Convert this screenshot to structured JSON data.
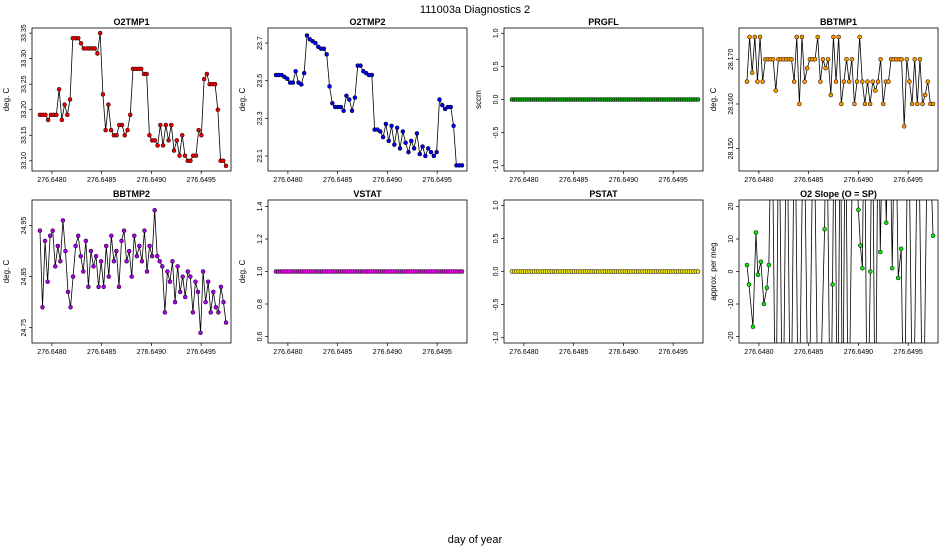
{
  "figure": {
    "title": "111003a   Diagnostics 2",
    "xlabel": "day of year"
  },
  "chart_data": [
    {
      "type": "line",
      "title": "O2TMP1",
      "ylabel": "deg. C",
      "xlim": [
        276.6478,
        276.6498
      ],
      "ylim": [
        33.08,
        33.36
      ],
      "xticks": [
        "276.6480",
        "276.6485",
        "276.6490",
        "276.6495"
      ],
      "xtick_values": [
        276.648,
        276.6485,
        276.649,
        276.6495
      ],
      "yticks": [
        "33.10",
        "33.15",
        "33.20",
        "33.25",
        "33.30",
        "33.35"
      ],
      "ytick_values": [
        33.1,
        33.15,
        33.2,
        33.25,
        33.3,
        33.35
      ],
      "marker_color": "#ee0000",
      "values": [
        33.19,
        33.19,
        33.19,
        33.18,
        33.19,
        33.19,
        33.19,
        33.24,
        33.18,
        33.21,
        33.19,
        33.22,
        33.34,
        33.34,
        33.34,
        33.33,
        33.32,
        33.32,
        33.32,
        33.32,
        33.32,
        33.31,
        33.35,
        33.23,
        33.16,
        33.21,
        33.16,
        33.15,
        33.15,
        33.17,
        33.17,
        33.15,
        33.16,
        33.19,
        33.28,
        33.28,
        33.28,
        33.28,
        33.27,
        33.27,
        33.15,
        33.14,
        33.14,
        33.13,
        33.17,
        33.13,
        33.17,
        33.14,
        33.17,
        33.12,
        33.14,
        33.11,
        33.15,
        33.11,
        33.1,
        33.1,
        33.11,
        33.11,
        33.16,
        33.15,
        33.26,
        33.27,
        33.25,
        33.25,
        33.25,
        33.2,
        33.1,
        33.1,
        33.09
      ]
    },
    {
      "type": "line",
      "title": "O2TMP2",
      "ylabel": "deg. C",
      "xlim": [
        276.6478,
        276.6498
      ],
      "ylim": [
        23.02,
        23.78
      ],
      "xticks": [
        "276.6480",
        "276.6485",
        "276.6490",
        "276.6495"
      ],
      "xtick_values": [
        276.648,
        276.6485,
        276.649,
        276.6495
      ],
      "yticks": [
        "23.1",
        "23.3",
        "23.5",
        "23.7"
      ],
      "ytick_values": [
        23.1,
        23.3,
        23.5,
        23.7
      ],
      "marker_color": "#0000ee",
      "values": [
        23.53,
        23.53,
        23.53,
        23.52,
        23.51,
        23.49,
        23.49,
        23.55,
        23.49,
        23.48,
        23.54,
        23.74,
        23.72,
        23.71,
        23.7,
        23.68,
        23.67,
        23.67,
        23.64,
        23.47,
        23.38,
        23.36,
        23.36,
        23.36,
        23.34,
        23.42,
        23.4,
        23.34,
        23.41,
        23.58,
        23.58,
        23.55,
        23.54,
        23.53,
        23.53,
        23.24,
        23.24,
        23.23,
        23.2,
        23.27,
        23.18,
        23.26,
        23.16,
        23.25,
        23.14,
        23.23,
        23.17,
        23.12,
        23.18,
        23.14,
        23.22,
        23.11,
        23.15,
        23.1,
        23.14,
        23.12,
        23.1,
        23.12,
        23.4,
        23.37,
        23.35,
        23.36,
        23.36,
        23.26,
        23.05,
        23.05,
        23.05
      ]
    },
    {
      "type": "line",
      "title": "PRGFL",
      "ylabel": "sccm",
      "xlim": [
        276.6478,
        276.6498
      ],
      "ylim": [
        -1.08,
        1.08
      ],
      "xticks": [
        "276.6480",
        "276.6485",
        "276.6490",
        "276.6495"
      ],
      "xtick_values": [
        276.648,
        276.6485,
        276.649,
        276.6495
      ],
      "yticks": [
        "-1.0",
        "-0.5",
        "0.0",
        "0.5",
        "1.0"
      ],
      "ytick_values": [
        -1.0,
        -0.5,
        0.0,
        0.5,
        1.0
      ],
      "marker_color": "#00aa00",
      "n_points": 85,
      "constant_value": 0.0
    },
    {
      "type": "line",
      "title": "BBTMP1",
      "ylabel": "deg. C",
      "xlim": [
        276.6478,
        276.6498
      ],
      "ylim": [
        28.145,
        28.177
      ],
      "xticks": [
        "276.6480",
        "276.6485",
        "276.6490",
        "276.6495"
      ],
      "xtick_values": [
        276.648,
        276.6485,
        276.649,
        276.6495
      ],
      "yticks": [
        "28.150",
        "28.160",
        "28.170"
      ],
      "ytick_values": [
        28.15,
        28.16,
        28.17
      ],
      "marker_color": "#ff9900",
      "values": [
        28.165,
        28.175,
        28.167,
        28.175,
        28.165,
        28.175,
        28.165,
        28.17,
        28.17,
        28.17,
        28.17,
        28.163,
        28.17,
        28.17,
        28.17,
        28.17,
        28.17,
        28.17,
        28.165,
        28.175,
        28.16,
        28.175,
        28.165,
        28.168,
        28.17,
        28.17,
        28.17,
        28.175,
        28.165,
        28.17,
        28.168,
        28.17,
        28.162,
        28.175,
        28.165,
        28.175,
        28.16,
        28.165,
        28.17,
        28.165,
        28.17,
        28.16,
        28.165,
        28.175,
        28.165,
        28.16,
        28.165,
        28.16,
        28.165,
        28.163,
        28.165,
        28.17,
        28.16,
        28.165,
        28.165,
        28.17,
        28.17,
        28.17,
        28.17,
        28.17,
        28.155,
        28.17,
        28.165,
        28.16,
        28.17,
        28.16,
        28.17,
        28.16,
        28.162,
        28.165,
        28.16,
        28.16
      ]
    },
    {
      "type": "line",
      "title": "BBTMP2",
      "ylabel": "deg. C",
      "xlim": [
        276.6478,
        276.6498
      ],
      "ylim": [
        24.72,
        25.0
      ],
      "xticks": [
        "276.6480",
        "276.6485",
        "276.6490",
        "276.6495"
      ],
      "xtick_values": [
        276.648,
        276.6485,
        276.649,
        276.6495
      ],
      "yticks": [
        "24.75",
        "24.85",
        "24.95"
      ],
      "ytick_values": [
        24.75,
        24.85,
        24.95
      ],
      "marker_color": "#aa00ee",
      "values": [
        24.94,
        24.79,
        24.92,
        24.84,
        24.93,
        24.94,
        24.87,
        24.91,
        24.88,
        24.96,
        24.9,
        24.82,
        24.79,
        24.85,
        24.91,
        24.93,
        24.89,
        24.86,
        24.92,
        24.83,
        24.9,
        24.87,
        24.89,
        24.83,
        24.88,
        24.83,
        24.91,
        24.85,
        24.93,
        24.88,
        24.9,
        24.83,
        24.92,
        24.94,
        24.88,
        24.9,
        24.85,
        24.93,
        24.89,
        24.91,
        24.88,
        24.94,
        24.86,
        24.91,
        24.89,
        24.98,
        24.89,
        24.88,
        24.87,
        24.78,
        24.86,
        24.84,
        24.88,
        24.8,
        24.87,
        24.82,
        24.85,
        24.81,
        24.86,
        24.85,
        24.78,
        24.84,
        24.82,
        24.74,
        24.86,
        24.8,
        24.84,
        24.78,
        24.82,
        24.79,
        24.78,
        24.83,
        24.8,
        24.76
      ]
    },
    {
      "type": "line",
      "title": "VSTAT",
      "ylabel": "deg. C",
      "xlim": [
        276.6478,
        276.6498
      ],
      "ylim": [
        0.56,
        1.44
      ],
      "xticks": [
        "276.6480",
        "276.6485",
        "276.6490",
        "276.6495"
      ],
      "xtick_values": [
        276.648,
        276.6485,
        276.649,
        276.6495
      ],
      "yticks": [
        "0.6",
        "0.8",
        "1.0",
        "1.2",
        "1.4"
      ],
      "ytick_values": [
        0.6,
        0.8,
        1.0,
        1.2,
        1.4
      ],
      "marker_color": "#ee00ee",
      "n_points": 85,
      "constant_value": 1.0
    },
    {
      "type": "line",
      "title": "PSTAT",
      "ylabel": "",
      "xlim": [
        276.6478,
        276.6498
      ],
      "ylim": [
        -1.08,
        1.08
      ],
      "xticks": [
        "276.6480",
        "276.6485",
        "276.6490",
        "276.6495"
      ],
      "xtick_values": [
        276.648,
        276.6485,
        276.649,
        276.6495
      ],
      "yticks": [
        "-1.0",
        "-0.5",
        "0.0",
        "0.5",
        "1.0"
      ],
      "ytick_values": [
        -1.0,
        -0.5,
        0.0,
        0.5,
        1.0
      ],
      "marker_color": "#ffee00",
      "n_points": 85,
      "constant_value": 0.0
    },
    {
      "type": "line",
      "title": "O2 Slope (O = SP)",
      "ylabel": "approx. per meg",
      "xlim": [
        276.6478,
        276.6498
      ],
      "ylim": [
        -22,
        22
      ],
      "xticks": [
        "276.6480",
        "276.6485",
        "276.6490",
        "276.6495"
      ],
      "xtick_values": [
        276.648,
        276.6485,
        276.649,
        276.6495
      ],
      "yticks": [
        "-20",
        "-10",
        "0",
        "10",
        "20"
      ],
      "ytick_values": [
        -20,
        -10,
        0,
        10,
        20
      ],
      "marker_color": "#00ee00",
      "points": [
        [
          276.64788,
          2
        ],
        [
          276.6479,
          -4
        ],
        [
          276.64794,
          -17
        ],
        [
          276.64797,
          12
        ],
        [
          276.64799,
          -1
        ],
        [
          276.64802,
          3
        ],
        [
          276.64805,
          -10
        ],
        [
          276.64808,
          -5
        ],
        [
          276.6481,
          2
        ],
        [
          276.64813,
          60
        ],
        [
          276.64817,
          -60
        ],
        [
          276.6482,
          60
        ],
        [
          276.64824,
          -60
        ],
        [
          276.64828,
          60
        ],
        [
          276.64832,
          -60
        ],
        [
          276.64836,
          60
        ],
        [
          276.6484,
          -60
        ],
        [
          276.64845,
          60
        ],
        [
          276.6485,
          -60
        ],
        [
          276.64855,
          60
        ],
        [
          276.6486,
          -60
        ],
        [
          276.64866,
          13
        ],
        [
          276.64868,
          60
        ],
        [
          276.64872,
          -60
        ],
        [
          276.64874,
          -4
        ],
        [
          276.64876,
          60
        ],
        [
          276.64879,
          -60
        ],
        [
          276.64882,
          60
        ],
        [
          276.64884,
          -60
        ],
        [
          276.64887,
          60
        ],
        [
          276.6489,
          -60
        ],
        [
          276.64895,
          60
        ],
        [
          276.649,
          19
        ],
        [
          276.64902,
          8
        ],
        [
          276.64904,
          1
        ],
        [
          276.64906,
          60
        ],
        [
          276.64909,
          -60
        ],
        [
          276.64912,
          0
        ],
        [
          276.64914,
          60
        ],
        [
          276.64917,
          -60
        ],
        [
          276.6492,
          60
        ],
        [
          276.64922,
          6
        ],
        [
          276.64925,
          60
        ],
        [
          276.64928,
          15
        ],
        [
          276.64931,
          60
        ],
        [
          276.64934,
          1
        ],
        [
          276.64937,
          60
        ],
        [
          276.6494,
          -2
        ],
        [
          276.64943,
          7
        ],
        [
          276.64946,
          -60
        ],
        [
          276.6495,
          60
        ],
        [
          276.64955,
          -60
        ],
        [
          276.6496,
          60
        ],
        [
          276.64965,
          -60
        ],
        [
          276.6497,
          60
        ],
        [
          276.64975,
          11
        ]
      ]
    }
  ]
}
